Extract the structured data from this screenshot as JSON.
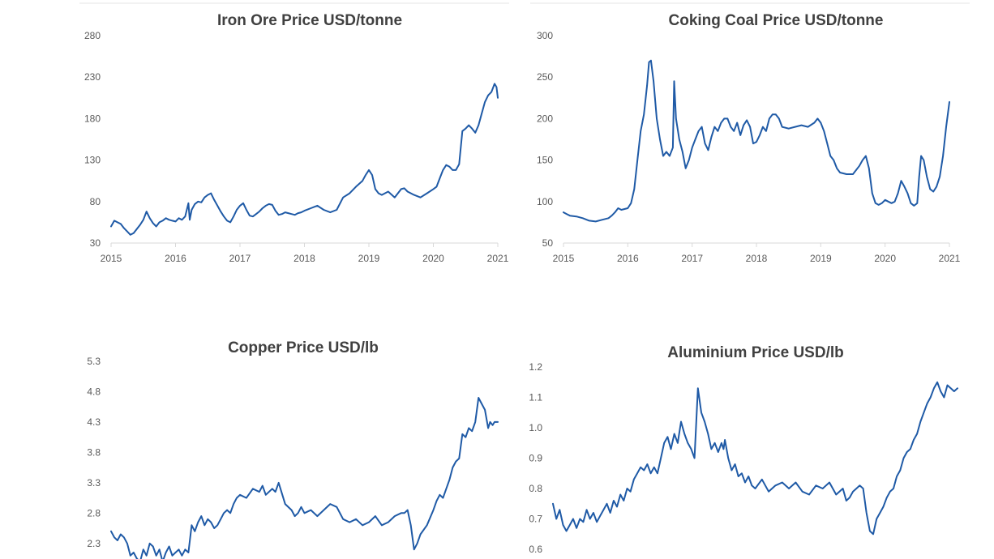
{
  "colors": {
    "series": "#1f5aa6",
    "text": "#404040",
    "tick": "#595959",
    "axis": "#d9d9d9"
  },
  "chart_data": [
    {
      "type": "line",
      "title": "Iron Ore Price USD/tonne",
      "x_ticks": [
        "2015",
        "2016",
        "2017",
        "2018",
        "2019",
        "2020",
        "2021"
      ],
      "y_ticks": [
        "30",
        "80",
        "130",
        "180",
        "230",
        "280"
      ],
      "xlim": [
        2015,
        2021
      ],
      "ylim": [
        30,
        280
      ],
      "grid": false,
      "legend": "none",
      "series": [
        {
          "x": [
            2015.0,
            2015.05,
            2015.1,
            2015.15,
            2015.2,
            2015.25,
            2015.3,
            2015.35,
            2015.4,
            2015.45,
            2015.5,
            2015.55,
            2015.6,
            2015.65,
            2015.7,
            2015.75,
            2015.8,
            2015.85,
            2015.9,
            2015.95,
            2016.0,
            2016.05,
            2016.1,
            2016.15,
            2016.2,
            2016.22,
            2016.25,
            2016.3,
            2016.35,
            2016.4,
            2016.45,
            2016.5,
            2016.55,
            2016.6,
            2016.65,
            2016.7,
            2016.75,
            2016.8,
            2016.85,
            2016.9,
            2016.95,
            2017.0,
            2017.05,
            2017.1,
            2017.15,
            2017.2,
            2017.25,
            2017.3,
            2017.35,
            2017.4,
            2017.45,
            2017.5,
            2017.55,
            2017.6,
            2017.65,
            2017.7,
            2017.75,
            2017.8,
            2017.85,
            2017.9,
            2017.95,
            2018.0,
            2018.1,
            2018.2,
            2018.3,
            2018.4,
            2018.5,
            2018.6,
            2018.7,
            2018.8,
            2018.9,
            2018.95,
            2019.0,
            2019.05,
            2019.1,
            2019.15,
            2019.2,
            2019.3,
            2019.4,
            2019.5,
            2019.55,
            2019.6,
            2019.7,
            2019.8,
            2019.9,
            2020.0,
            2020.05,
            2020.1,
            2020.15,
            2020.2,
            2020.25,
            2020.3,
            2020.35,
            2020.4,
            2020.45,
            2020.5,
            2020.55,
            2020.6,
            2020.65,
            2020.7,
            2020.75,
            2020.8,
            2020.85,
            2020.9,
            2020.95,
            2020.98,
            2021.0
          ],
          "y": [
            50,
            57,
            55,
            53,
            48,
            44,
            40,
            42,
            47,
            52,
            58,
            68,
            60,
            54,
            50,
            55,
            57,
            60,
            58,
            57,
            56,
            60,
            58,
            62,
            78,
            58,
            70,
            77,
            80,
            79,
            85,
            88,
            90,
            82,
            75,
            68,
            62,
            57,
            55,
            62,
            70,
            75,
            78,
            70,
            63,
            62,
            65,
            68,
            72,
            75,
            77,
            76,
            69,
            64,
            65,
            67,
            66,
            65,
            64,
            66,
            67,
            69,
            72,
            75,
            70,
            67,
            70,
            85,
            90,
            98,
            105,
            112,
            118,
            112,
            95,
            90,
            88,
            92,
            85,
            95,
            96,
            92,
            88,
            85,
            90,
            95,
            98,
            108,
            118,
            124,
            122,
            118,
            118,
            125,
            165,
            168,
            172,
            168,
            163,
            172,
            186,
            200,
            208,
            212,
            222,
            218,
            205
          ]
        }
      ]
    },
    {
      "type": "line",
      "title": "Coking Coal Price USD/tonne",
      "x_ticks": [
        "2015",
        "2016",
        "2017",
        "2018",
        "2019",
        "2020",
        "2021"
      ],
      "y_ticks": [
        "50",
        "100",
        "150",
        "200",
        "250",
        "300"
      ],
      "xlim": [
        2015,
        2021
      ],
      "ylim": [
        50,
        300
      ],
      "grid": false,
      "legend": "none",
      "series": [
        {
          "x": [
            2015.0,
            2015.05,
            2015.1,
            2015.2,
            2015.3,
            2015.4,
            2015.5,
            2015.6,
            2015.7,
            2015.75,
            2015.8,
            2015.85,
            2015.9,
            2016.0,
            2016.05,
            2016.1,
            2016.15,
            2016.2,
            2016.25,
            2016.3,
            2016.33,
            2016.36,
            2016.4,
            2016.45,
            2016.5,
            2016.55,
            2016.6,
            2016.65,
            2016.7,
            2016.72,
            2016.75,
            2016.8,
            2016.85,
            2016.9,
            2016.95,
            2017.0,
            2017.05,
            2017.1,
            2017.15,
            2017.2,
            2017.25,
            2017.3,
            2017.35,
            2017.4,
            2017.45,
            2017.5,
            2017.55,
            2017.6,
            2017.65,
            2017.7,
            2017.75,
            2017.8,
            2017.85,
            2017.9,
            2017.95,
            2018.0,
            2018.05,
            2018.1,
            2018.15,
            2018.2,
            2018.25,
            2018.3,
            2018.35,
            2018.4,
            2018.5,
            2018.6,
            2018.7,
            2018.8,
            2018.9,
            2018.95,
            2019.0,
            2019.05,
            2019.1,
            2019.15,
            2019.2,
            2019.25,
            2019.3,
            2019.4,
            2019.5,
            2019.6,
            2019.65,
            2019.7,
            2019.75,
            2019.8,
            2019.85,
            2019.9,
            2019.95,
            2020.0,
            2020.05,
            2020.1,
            2020.15,
            2020.2,
            2020.25,
            2020.3,
            2020.35,
            2020.4,
            2020.45,
            2020.5,
            2020.53,
            2020.56,
            2020.6,
            2020.65,
            2020.7,
            2020.75,
            2020.8,
            2020.85,
            2020.9,
            2020.95,
            2021.0
          ],
          "y": [
            87,
            85,
            83,
            82,
            80,
            77,
            76,
            78,
            80,
            83,
            87,
            92,
            90,
            92,
            98,
            115,
            150,
            185,
            205,
            240,
            268,
            270,
            245,
            200,
            175,
            155,
            160,
            155,
            165,
            245,
            200,
            175,
            160,
            140,
            150,
            165,
            175,
            185,
            190,
            170,
            162,
            178,
            190,
            185,
            195,
            200,
            200,
            190,
            185,
            195,
            180,
            192,
            198,
            190,
            170,
            172,
            180,
            190,
            185,
            200,
            205,
            205,
            200,
            190,
            188,
            190,
            192,
            190,
            195,
            200,
            195,
            185,
            170,
            155,
            150,
            140,
            135,
            133,
            133,
            143,
            150,
            155,
            140,
            110,
            98,
            96,
            98,
            102,
            100,
            98,
            100,
            110,
            125,
            118,
            110,
            98,
            95,
            98,
            130,
            155,
            150,
            130,
            115,
            112,
            118,
            130,
            155,
            190,
            220
          ]
        }
      ]
    },
    {
      "type": "line",
      "title": "Copper Price USD/lb",
      "x_ticks": [],
      "y_ticks": [
        "2.3",
        "2.8",
        "3.3",
        "3.8",
        "4.3",
        "4.8",
        "5.3"
      ],
      "xlim": [
        2015,
        2021
      ],
      "ylim": [
        1.95,
        5.3
      ],
      "grid": false,
      "legend": "none",
      "series": [
        {
          "x": [
            2015.0,
            2015.05,
            2015.1,
            2015.15,
            2015.2,
            2015.25,
            2015.3,
            2015.35,
            2015.4,
            2015.45,
            2015.5,
            2015.55,
            2015.6,
            2015.65,
            2015.7,
            2015.75,
            2015.8,
            2015.85,
            2015.9,
            2015.95,
            2016.0,
            2016.05,
            2016.1,
            2016.15,
            2016.2,
            2016.25,
            2016.3,
            2016.35,
            2016.4,
            2016.45,
            2016.5,
            2016.55,
            2016.6,
            2016.65,
            2016.7,
            2016.75,
            2016.8,
            2016.85,
            2016.9,
            2016.95,
            2017.0,
            2017.1,
            2017.2,
            2017.3,
            2017.35,
            2017.4,
            2017.5,
            2017.55,
            2017.6,
            2017.7,
            2017.8,
            2017.85,
            2017.9,
            2017.95,
            2018.0,
            2018.1,
            2018.2,
            2018.3,
            2018.4,
            2018.5,
            2018.6,
            2018.7,
            2018.8,
            2018.9,
            2019.0,
            2019.1,
            2019.2,
            2019.3,
            2019.4,
            2019.5,
            2019.55,
            2019.6,
            2019.65,
            2019.7,
            2019.75,
            2019.8,
            2019.9,
            2020.0,
            2020.05,
            2020.1,
            2020.15,
            2020.2,
            2020.25,
            2020.3,
            2020.35,
            2020.4,
            2020.45,
            2020.5,
            2020.55,
            2020.6,
            2020.65,
            2020.7,
            2020.75,
            2020.8,
            2020.85,
            2020.88,
            2020.92,
            2020.95,
            2021.0
          ],
          "y": [
            2.5,
            2.4,
            2.35,
            2.45,
            2.4,
            2.3,
            2.1,
            2.15,
            2.05,
            2.0,
            2.2,
            2.1,
            2.3,
            2.25,
            2.1,
            2.2,
            2.0,
            2.15,
            2.25,
            2.1,
            2.15,
            2.2,
            2.1,
            2.2,
            2.15,
            2.6,
            2.5,
            2.65,
            2.75,
            2.6,
            2.7,
            2.65,
            2.55,
            2.6,
            2.7,
            2.8,
            2.85,
            2.8,
            2.95,
            3.05,
            3.1,
            3.05,
            3.2,
            3.15,
            3.25,
            3.1,
            3.2,
            3.15,
            3.3,
            2.95,
            2.85,
            2.75,
            2.8,
            2.9,
            2.8,
            2.85,
            2.75,
            2.85,
            2.95,
            2.9,
            2.7,
            2.65,
            2.7,
            2.6,
            2.65,
            2.75,
            2.6,
            2.65,
            2.75,
            2.8,
            2.8,
            2.85,
            2.6,
            2.2,
            2.3,
            2.45,
            2.6,
            2.85,
            3.0,
            3.1,
            3.05,
            3.2,
            3.35,
            3.55,
            3.65,
            3.7,
            4.1,
            4.05,
            4.2,
            4.15,
            4.3,
            4.7,
            4.6,
            4.5,
            4.2,
            4.3,
            4.25,
            4.3,
            4.3
          ]
        }
      ]
    },
    {
      "type": "line",
      "title": "Aluminium Price USD/lb",
      "x_ticks": [],
      "y_ticks": [
        "0.6",
        "0.7",
        "0.8",
        "0.9",
        "1.0",
        "1.1",
        "1.2"
      ],
      "xlim": [
        2015,
        2021
      ],
      "ylim": [
        0.6,
        1.2
      ],
      "grid": false,
      "legend": "none",
      "series": [
        {
          "x": [
            2015.0,
            2015.05,
            2015.1,
            2015.15,
            2015.2,
            2015.25,
            2015.3,
            2015.35,
            2015.4,
            2015.45,
            2015.5,
            2015.55,
            2015.6,
            2015.65,
            2015.7,
            2015.75,
            2015.8,
            2015.85,
            2015.9,
            2015.95,
            2016.0,
            2016.05,
            2016.1,
            2016.15,
            2016.2,
            2016.25,
            2016.3,
            2016.35,
            2016.4,
            2016.45,
            2016.5,
            2016.55,
            2016.6,
            2016.65,
            2016.7,
            2016.75,
            2016.8,
            2016.85,
            2016.9,
            2016.95,
            2017.0,
            2017.05,
            2017.1,
            2017.15,
            2017.2,
            2017.25,
            2017.3,
            2017.35,
            2017.4,
            2017.45,
            2017.5,
            2017.53,
            2017.55,
            2017.6,
            2017.65,
            2017.7,
            2017.75,
            2017.8,
            2017.85,
            2017.9,
            2017.95,
            2018.0,
            2018.1,
            2018.2,
            2018.3,
            2018.4,
            2018.5,
            2018.6,
            2018.7,
            2018.8,
            2018.9,
            2019.0,
            2019.1,
            2019.2,
            2019.3,
            2019.35,
            2019.4,
            2019.45,
            2019.5,
            2019.55,
            2019.6,
            2019.65,
            2019.7,
            2019.75,
            2019.8,
            2019.85,
            2019.9,
            2019.95,
            2020.0,
            2020.05,
            2020.1,
            2020.15,
            2020.2,
            2020.25,
            2020.3,
            2020.35,
            2020.4,
            2020.45,
            2020.5,
            2020.55,
            2020.6,
            2020.65,
            2020.7,
            2020.75,
            2020.8,
            2020.85,
            2020.9,
            2020.95,
            2021.0
          ],
          "y": [
            0.75,
            0.7,
            0.73,
            0.68,
            0.66,
            0.68,
            0.7,
            0.67,
            0.7,
            0.69,
            0.73,
            0.7,
            0.72,
            0.69,
            0.71,
            0.73,
            0.75,
            0.72,
            0.76,
            0.74,
            0.78,
            0.76,
            0.8,
            0.79,
            0.83,
            0.85,
            0.87,
            0.86,
            0.88,
            0.85,
            0.87,
            0.85,
            0.9,
            0.95,
            0.97,
            0.93,
            0.98,
            0.95,
            1.02,
            0.98,
            0.95,
            0.93,
            0.9,
            1.13,
            1.05,
            1.02,
            0.98,
            0.93,
            0.95,
            0.92,
            0.95,
            0.93,
            0.96,
            0.9,
            0.86,
            0.88,
            0.84,
            0.85,
            0.82,
            0.84,
            0.81,
            0.8,
            0.83,
            0.79,
            0.81,
            0.82,
            0.8,
            0.82,
            0.79,
            0.78,
            0.81,
            0.8,
            0.82,
            0.78,
            0.8,
            0.76,
            0.77,
            0.79,
            0.8,
            0.81,
            0.8,
            0.72,
            0.66,
            0.65,
            0.7,
            0.72,
            0.74,
            0.77,
            0.79,
            0.8,
            0.84,
            0.86,
            0.9,
            0.92,
            0.93,
            0.96,
            0.98,
            1.02,
            1.05,
            1.08,
            1.1,
            1.13,
            1.15,
            1.12,
            1.1,
            1.14,
            1.13,
            1.12,
            1.13
          ]
        }
      ]
    }
  ]
}
